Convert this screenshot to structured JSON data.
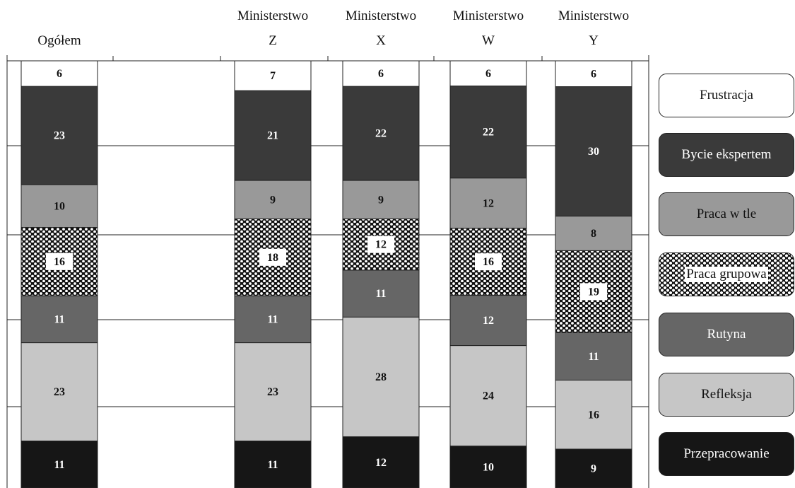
{
  "chart_data": {
    "type": "bar",
    "stacked": true,
    "normalized_percent": true,
    "categories": [
      "Ogółem",
      "Ministerstwo Z",
      "Ministerstwo X",
      "Ministerstwo W",
      "Ministerstwo Y"
    ],
    "category_labels": [
      {
        "line1": "",
        "line2": "Ogółem"
      },
      {
        "line1": "Ministerstwo",
        "line2": "Z"
      },
      {
        "line1": "Ministerstwo",
        "line2": "X"
      },
      {
        "line1": "Ministerstwo",
        "line2": "W"
      },
      {
        "line1": "Ministerstwo",
        "line2": "Y"
      }
    ],
    "series": [
      {
        "name": "Frustracja",
        "color": "#ffffff",
        "label_color": "#111111",
        "pattern": false,
        "values": [
          6,
          7,
          6,
          6,
          6
        ]
      },
      {
        "name": "Bycie ekspertem",
        "color": "#3a3a3a",
        "label_color": "#ffffff",
        "pattern": false,
        "values": [
          23,
          21,
          22,
          22,
          30
        ]
      },
      {
        "name": "Praca w tle",
        "color": "#999999",
        "label_color": "#111111",
        "pattern": false,
        "values": [
          10,
          9,
          9,
          12,
          8
        ]
      },
      {
        "name": "Praca grupowa",
        "color": "#111111",
        "label_color": "#111111",
        "pattern": true,
        "values": [
          16,
          18,
          12,
          16,
          19
        ]
      },
      {
        "name": "Rutyna",
        "color": "#666666",
        "label_color": "#ffffff",
        "pattern": false,
        "values": [
          11,
          11,
          11,
          12,
          11
        ]
      },
      {
        "name": "Refleksja",
        "color": "#c6c6c6",
        "label_color": "#111111",
        "pattern": false,
        "values": [
          23,
          23,
          28,
          24,
          16
        ]
      },
      {
        "name": "Przepracowanie",
        "color": "#161616",
        "label_color": "#ffffff",
        "pattern": false,
        "values": [
          11,
          11,
          12,
          10,
          9
        ]
      }
    ],
    "grid": true,
    "legend_position": "right"
  }
}
